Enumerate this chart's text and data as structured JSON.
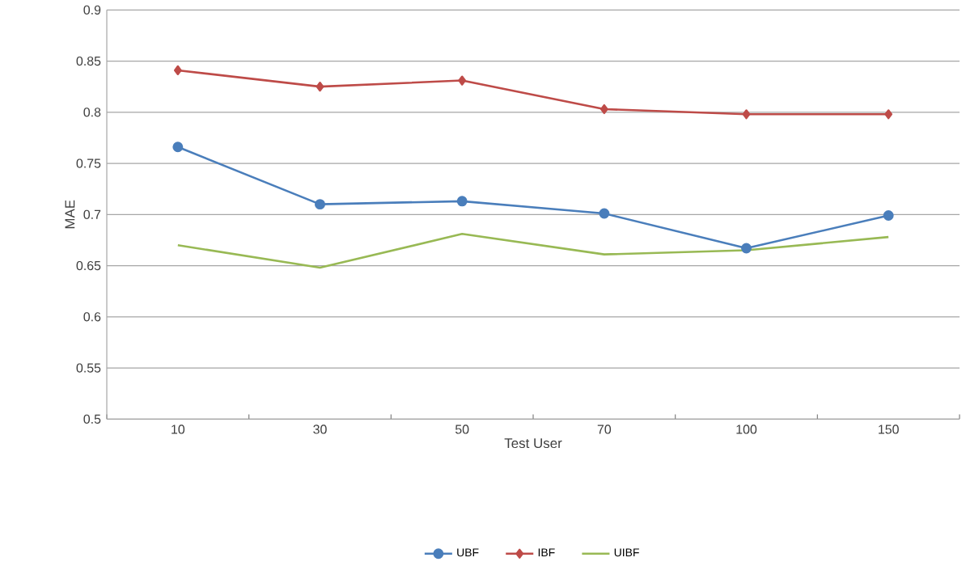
{
  "chart_data": {
    "type": "line",
    "xlabel": "Test User",
    "ylabel": "MAE",
    "categories": [
      "10",
      "30",
      "50",
      "70",
      "100",
      "150"
    ],
    "series": [
      {
        "name": "UBF",
        "color": "#4a7ebb",
        "marker": "circle",
        "values": [
          0.766,
          0.71,
          0.713,
          0.701,
          0.667,
          0.699
        ]
      },
      {
        "name": "IBF",
        "color": "#be4b48",
        "marker": "diamond",
        "values": [
          0.841,
          0.825,
          0.831,
          0.803,
          0.798,
          0.798
        ]
      },
      {
        "name": "UIBF",
        "color": "#98b954",
        "marker": "none",
        "values": [
          0.67,
          0.648,
          0.681,
          0.661,
          0.665,
          0.678
        ]
      }
    ],
    "ylim": [
      0.5,
      0.9
    ],
    "yticks": [
      0.5,
      0.55,
      0.6,
      0.65,
      0.7,
      0.75,
      0.8,
      0.85,
      0.9
    ],
    "grid": "y",
    "legend": "bottom",
    "line_style": "solid"
  }
}
